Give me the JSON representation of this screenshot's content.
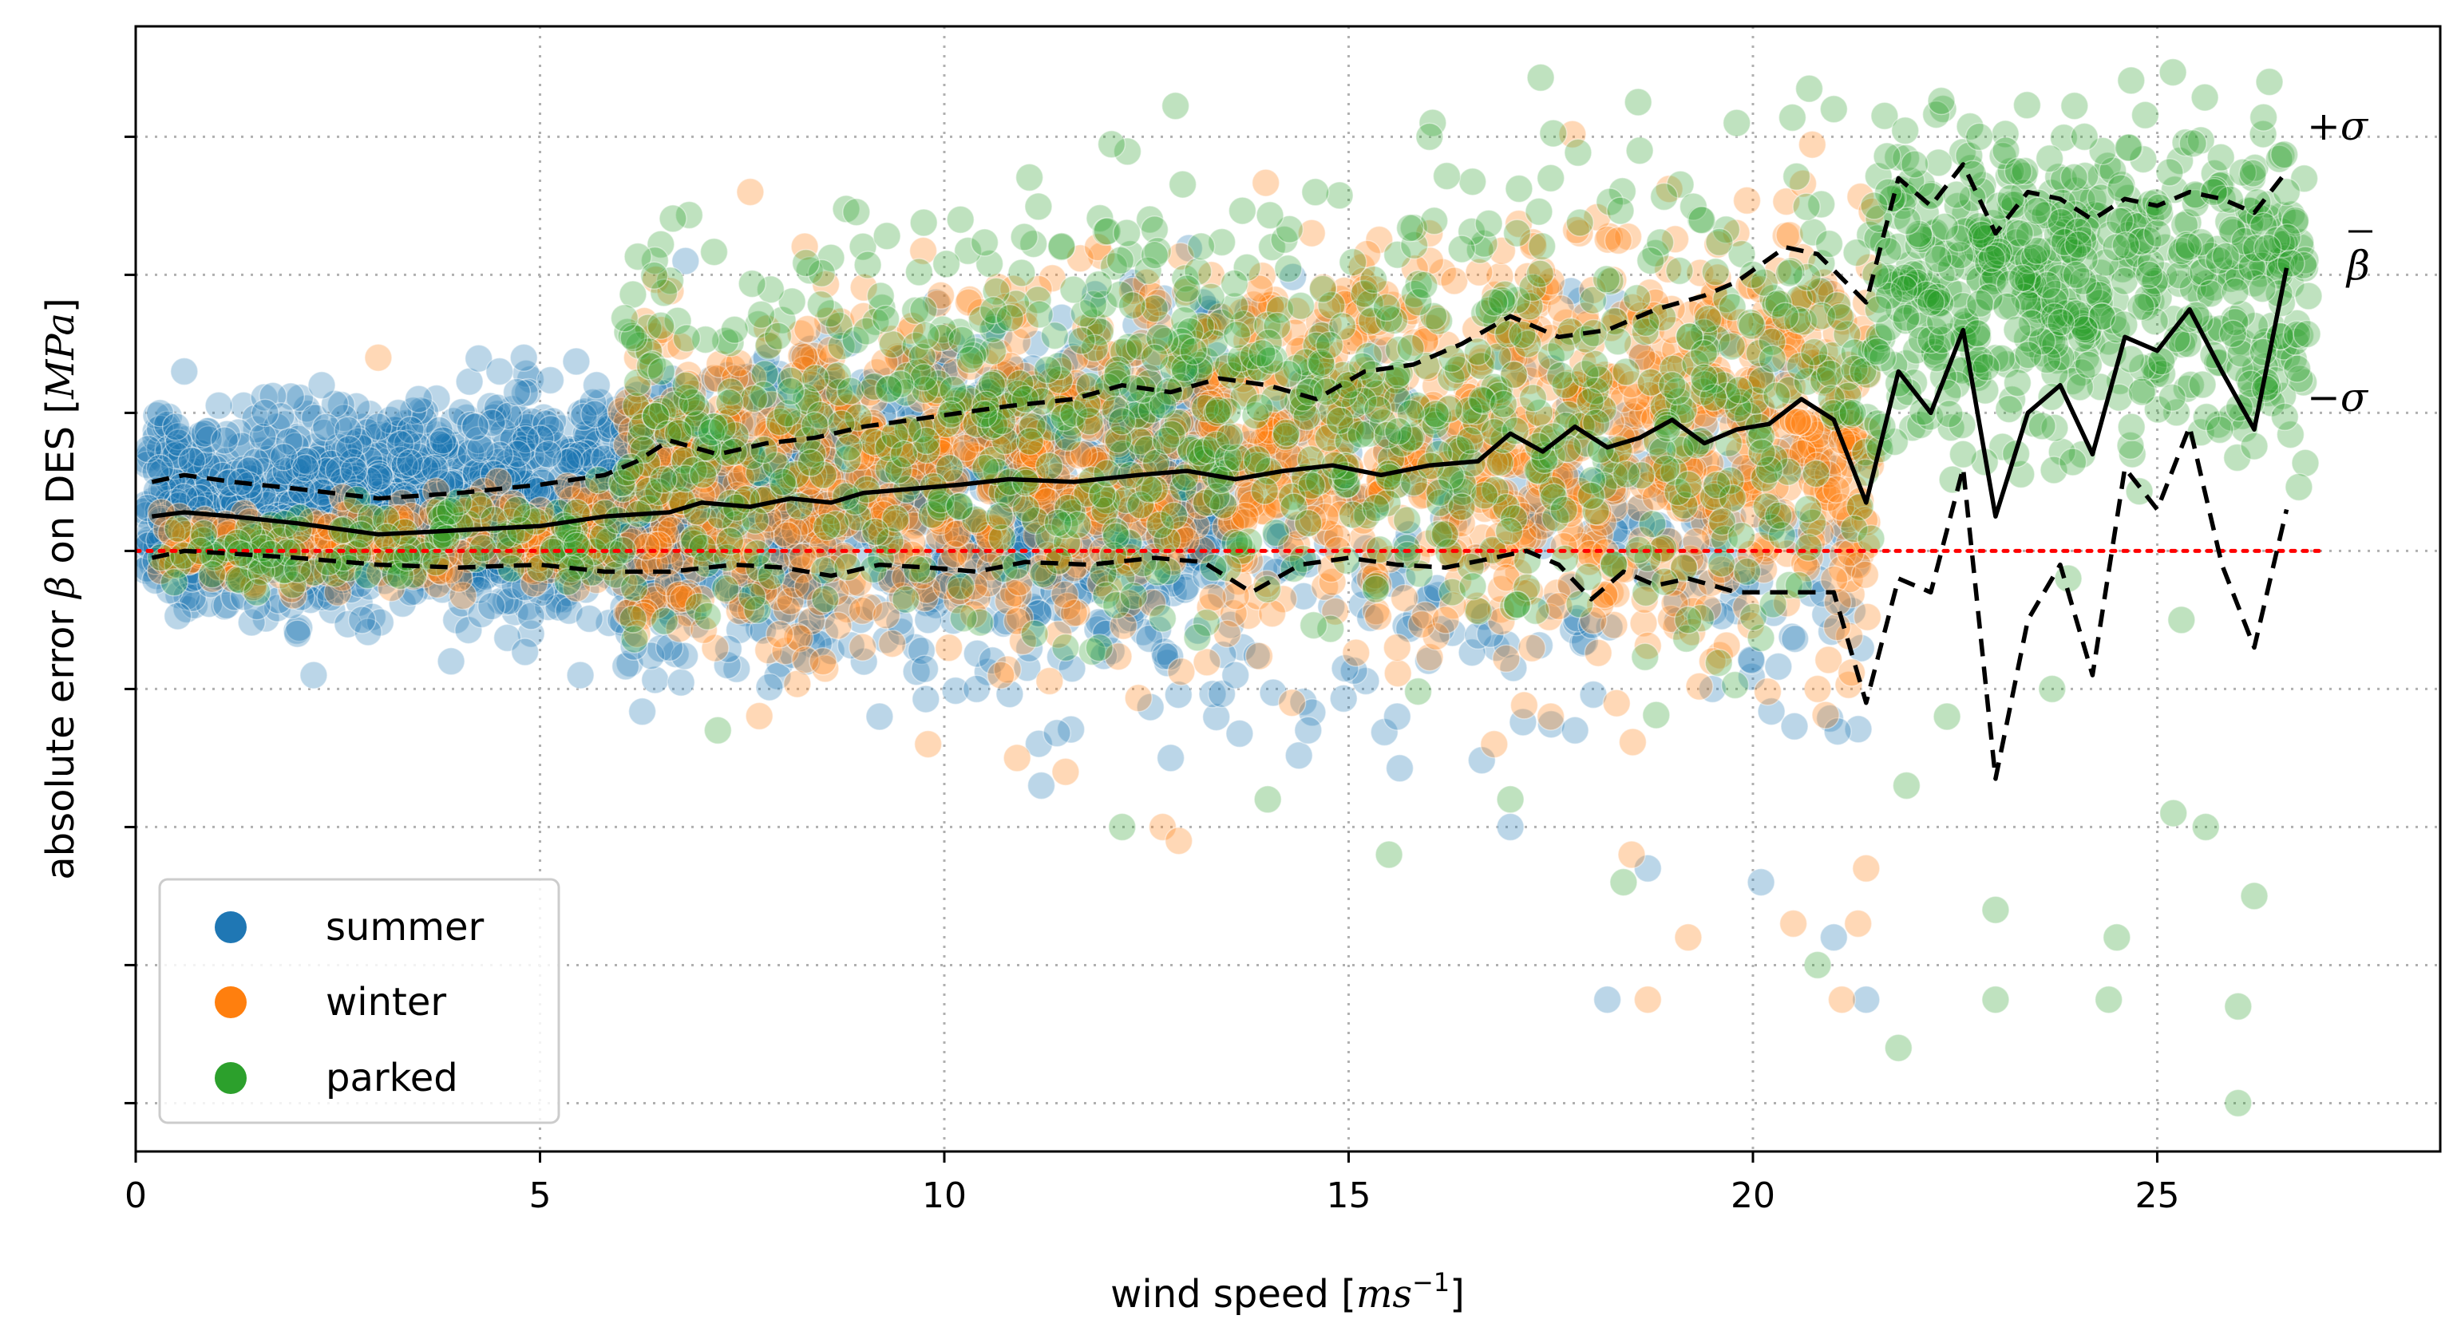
{
  "chart_data": {
    "type": "scatter",
    "xlabel": "wind speed [ms⁻¹]",
    "xlabel_base": "wind speed [",
    "xlabel_unit": "ms",
    "xlabel_exp": "−1",
    "xlabel_close": "]",
    "ylabel": "absolute error β on DES [MPa]",
    "ylabel_base": "absolute error ",
    "ylabel_beta": "β",
    "ylabel_mid": " on DES [",
    "ylabel_unit": "MPa",
    "ylabel_close": "]",
    "xlim": [
      0,
      28.5
    ],
    "ylim": [
      -4.35,
      3.8
    ],
    "xticks": [
      0,
      5,
      10,
      15,
      20,
      25
    ],
    "xtick_labels": [
      "0",
      "5",
      "10",
      "15",
      "20",
      "25"
    ],
    "yticks": [
      -4,
      -3,
      -2,
      -1,
      0,
      1,
      2,
      3
    ],
    "grid": true,
    "legend_position": "bottom-left",
    "colors": {
      "summer": "#1f77b4",
      "winter": "#ff7f0e",
      "parked": "#2ca02c",
      "zero_line": "#ff0000",
      "stat_lines": "#000000"
    },
    "legend": [
      {
        "name": "summer",
        "color": "#1f77b4"
      },
      {
        "name": "winter",
        "color": "#ff7f0e"
      },
      {
        "name": "parked",
        "color": "#2ca02c"
      }
    ],
    "reference_line": {
      "y": 0,
      "x_range": [
        0,
        27
      ],
      "color": "#ff0000",
      "style": "dotted"
    },
    "annotations": {
      "plus_sigma": "+σ",
      "mean": "β",
      "minus_sigma": "−σ"
    },
    "series": [
      {
        "name": "summer",
        "color": "#1f77b4",
        "points": [
          [
            0.3,
            0.6
          ],
          [
            0.5,
            0.9
          ],
          [
            0.6,
            1.3
          ],
          [
            0.7,
            -0.2
          ],
          [
            0.8,
            0.3
          ],
          [
            1.0,
            0.1
          ],
          [
            1.1,
            0.8
          ],
          [
            1.3,
            0.5
          ],
          [
            1.5,
            -0.4
          ],
          [
            1.6,
            1.0
          ],
          [
            1.8,
            0.2
          ],
          [
            2.0,
            -0.6
          ],
          [
            2.1,
            0.6
          ],
          [
            2.3,
            1.2
          ],
          [
            2.5,
            0.0
          ],
          [
            2.7,
            0.4
          ],
          [
            2.8,
            -0.5
          ],
          [
            3.0,
            0.9
          ],
          [
            3.2,
            0.3
          ],
          [
            3.4,
            -0.3
          ],
          [
            3.5,
            1.1
          ],
          [
            3.7,
            0.6
          ],
          [
            3.9,
            -0.8
          ],
          [
            4.0,
            0.2
          ],
          [
            4.2,
            0.9
          ],
          [
            4.4,
            -0.4
          ],
          [
            4.6,
            0.5
          ],
          [
            4.8,
            1.4
          ],
          [
            5.0,
            -0.2
          ],
          [
            5.1,
            0.7
          ],
          [
            5.3,
            0.1
          ],
          [
            5.5,
            -0.9
          ],
          [
            5.7,
            1.2
          ],
          [
            5.8,
            0.4
          ],
          [
            6.0,
            -0.5
          ],
          [
            6.2,
            0.8
          ],
          [
            6.4,
            0.2
          ],
          [
            6.6,
            -0.7
          ],
          [
            6.8,
            2.1
          ],
          [
            7.0,
            1.0
          ],
          [
            7.2,
            0.5
          ],
          [
            7.5,
            -0.3
          ],
          [
            7.8,
            1.4
          ],
          [
            8.0,
            0.6
          ],
          [
            8.3,
            -0.8
          ],
          [
            8.6,
            1.0
          ],
          [
            8.9,
            0.3
          ],
          [
            9.2,
            -1.2
          ],
          [
            9.5,
            0.8
          ],
          [
            9.8,
            -0.5
          ],
          [
            10.1,
            1.5
          ],
          [
            10.4,
            -1.0
          ],
          [
            10.8,
            0.6
          ],
          [
            11.2,
            -1.7
          ],
          [
            11.6,
            1.2
          ],
          [
            12.0,
            -0.6
          ],
          [
            12.4,
            0.9
          ],
          [
            12.8,
            -1.5
          ],
          [
            13.2,
            1.8
          ],
          [
            13.6,
            -0.9
          ],
          [
            14.0,
            0.7
          ],
          [
            14.5,
            -1.3
          ],
          [
            15.0,
            0.4
          ],
          [
            15.6,
            -1.2
          ],
          [
            16.2,
            0.8
          ],
          [
            17.0,
            -2.0
          ],
          [
            17.8,
            -1.3
          ],
          [
            18.2,
            -3.25
          ],
          [
            18.7,
            -2.3
          ],
          [
            19.5,
            -1.0
          ],
          [
            20.1,
            -2.4
          ],
          [
            21.0,
            -2.8
          ],
          [
            21.4,
            -3.25
          ],
          [
            6.5,
            -0.1
          ],
          [
            2.2,
            -0.9
          ],
          [
            4.5,
            1.3
          ],
          [
            3.8,
            0.8
          ],
          [
            8.1,
            -0.2
          ],
          [
            9.9,
            1.8
          ],
          [
            11.9,
            1.6
          ]
        ]
      },
      {
        "name": "winter",
        "color": "#ff7f0e",
        "points": [
          [
            0.5,
            0.0
          ],
          [
            1.2,
            -0.2
          ],
          [
            2.5,
            -0.3
          ],
          [
            3.0,
            1.4
          ],
          [
            4.0,
            -0.2
          ],
          [
            5.5,
            0.0
          ],
          [
            6.2,
            -0.6
          ],
          [
            6.5,
            1.6
          ],
          [
            7.0,
            0.4
          ],
          [
            7.5,
            -0.4
          ],
          [
            8.0,
            0.9
          ],
          [
            8.5,
            -0.8
          ],
          [
            9.0,
            1.7
          ],
          [
            9.4,
            0.2
          ],
          [
            9.8,
            -1.4
          ],
          [
            10.3,
            1.8
          ],
          [
            10.7,
            -0.9
          ],
          [
            11.1,
            0.7
          ],
          [
            11.5,
            -1.6
          ],
          [
            11.9,
            2.2
          ],
          [
            12.3,
            0.3
          ],
          [
            12.7,
            -2.0
          ],
          [
            13.1,
            1.5
          ],
          [
            13.5,
            -0.6
          ],
          [
            13.9,
            1.9
          ],
          [
            14.3,
            -1.1
          ],
          [
            14.8,
            0.5
          ],
          [
            15.2,
            1.9
          ],
          [
            15.6,
            -0.7
          ],
          [
            16.0,
            2.3
          ],
          [
            16.4,
            0.2
          ],
          [
            16.8,
            -1.4
          ],
          [
            17.2,
            1.7
          ],
          [
            17.6,
            -0.4
          ],
          [
            18.0,
            0.9
          ],
          [
            18.5,
            -2.2
          ],
          [
            19.0,
            1.6
          ],
          [
            19.5,
            -0.8
          ],
          [
            19.9,
            0.6
          ],
          [
            20.4,
            1.4
          ],
          [
            20.8,
            -1.0
          ],
          [
            21.1,
            0.8
          ],
          [
            21.3,
            -2.7
          ],
          [
            21.1,
            -3.25
          ],
          [
            21.4,
            -2.3
          ],
          [
            7.6,
            2.6
          ],
          [
            11.8,
            1.6
          ],
          [
            14.9,
            1.0
          ],
          [
            17.5,
            -1.2
          ],
          [
            19.2,
            -2.8
          ],
          [
            20.5,
            -2.7
          ],
          [
            18.7,
            -3.25
          ],
          [
            10.9,
            -1.5
          ],
          [
            12.9,
            -2.1
          ],
          [
            16.2,
            -0.5
          ],
          [
            9.6,
            0.5
          ],
          [
            13.3,
            0.9
          ],
          [
            15.9,
            0.4
          ],
          [
            8.8,
            0.2
          ],
          [
            6.8,
            0.7
          ]
        ]
      },
      {
        "name": "parked",
        "color": "#2ca02c",
        "points": [
          [
            0.8,
            0.0
          ],
          [
            1.5,
            -0.3
          ],
          [
            6.5,
            1.3
          ],
          [
            7.2,
            -1.3
          ],
          [
            8.0,
            0.5
          ],
          [
            9.5,
            0.7
          ],
          [
            10.2,
            2.4
          ],
          [
            11.0,
            1.1
          ],
          [
            12.2,
            -2.0
          ],
          [
            13.0,
            1.9
          ],
          [
            14.0,
            -1.8
          ],
          [
            15.0,
            1.2
          ],
          [
            15.5,
            -2.2
          ],
          [
            16.0,
            3.0
          ],
          [
            16.8,
            1.8
          ],
          [
            17.5,
            2.7
          ],
          [
            18.0,
            0.4
          ],
          [
            18.6,
            2.9
          ],
          [
            19.2,
            -0.5
          ],
          [
            19.8,
            3.1
          ],
          [
            20.4,
            1.7
          ],
          [
            21.0,
            3.2
          ],
          [
            21.5,
            2.5
          ],
          [
            21.9,
            -1.7
          ],
          [
            22.2,
            1.8
          ],
          [
            22.6,
            0.7
          ],
          [
            23.0,
            -2.6
          ],
          [
            23.3,
            2.3
          ],
          [
            23.7,
            -1.0
          ],
          [
            24.1,
            3.0
          ],
          [
            24.5,
            -2.8
          ],
          [
            24.9,
            2.0
          ],
          [
            25.3,
            -0.5
          ],
          [
            25.7,
            2.6
          ],
          [
            26.0,
            -3.3
          ],
          [
            26.3,
            1.9
          ],
          [
            26.6,
            2.6
          ],
          [
            22.0,
            2.8
          ],
          [
            22.8,
            3.0
          ],
          [
            24.0,
            2.0
          ],
          [
            25.0,
            2.3
          ],
          [
            25.6,
            -2.0
          ],
          [
            26.2,
            -2.5
          ],
          [
            21.8,
            -3.6
          ],
          [
            23.0,
            -3.25
          ],
          [
            24.4,
            -3.25
          ],
          [
            26.0,
            -4.0
          ],
          [
            18.4,
            -2.4
          ],
          [
            17.0,
            -1.8
          ],
          [
            20.8,
            -3.0
          ],
          [
            22.4,
            -1.2
          ],
          [
            25.2,
            -1.9
          ],
          [
            23.9,
            -0.2
          ],
          [
            21.6,
            0.9
          ],
          [
            20.0,
            2.0
          ],
          [
            19.0,
            1.2
          ],
          [
            16.5,
            0.8
          ],
          [
            14.5,
            0.2
          ],
          [
            12.6,
            1.4
          ],
          [
            11.5,
            -0.7
          ]
        ]
      }
    ],
    "mean_line": {
      "name": "mean",
      "x": [
        0.2,
        0.6,
        1.2,
        2.0,
        3.0,
        4.0,
        5.0,
        5.8,
        6.6,
        7.0,
        7.6,
        8.1,
        8.6,
        9.0,
        9.6,
        10.2,
        10.8,
        11.6,
        12.4,
        13.0,
        13.6,
        14.2,
        14.8,
        15.4,
        16.0,
        16.6,
        17.0,
        17.4,
        17.8,
        18.2,
        18.6,
        19.0,
        19.4,
        19.8,
        20.2,
        20.6,
        21.0,
        21.4,
        21.8,
        22.2,
        22.6,
        23.0,
        23.4,
        23.8,
        24.2,
        24.6,
        25.0,
        25.4,
        25.8,
        26.2,
        26.6
      ],
      "y": [
        0.25,
        0.28,
        0.25,
        0.2,
        0.12,
        0.15,
        0.18,
        0.25,
        0.28,
        0.35,
        0.32,
        0.38,
        0.35,
        0.42,
        0.45,
        0.48,
        0.52,
        0.5,
        0.55,
        0.58,
        0.52,
        0.58,
        0.62,
        0.55,
        0.62,
        0.65,
        0.85,
        0.72,
        0.9,
        0.75,
        0.82,
        0.95,
        0.78,
        0.88,
        0.92,
        1.1,
        0.95,
        0.35,
        1.3,
        1.0,
        1.6,
        0.25,
        1.0,
        1.2,
        0.7,
        1.55,
        1.45,
        1.75,
        1.3,
        0.88,
        2.05
      ]
    },
    "upper_sigma_line": {
      "name": "+sigma",
      "x": [
        0.2,
        0.6,
        1.2,
        2.0,
        3.0,
        4.0,
        5.0,
        5.8,
        6.2,
        6.6,
        7.2,
        7.8,
        8.4,
        9.0,
        9.6,
        10.2,
        10.8,
        11.6,
        12.2,
        12.8,
        13.4,
        14.0,
        14.6,
        15.2,
        15.8,
        16.4,
        17.0,
        17.6,
        18.2,
        18.8,
        19.4,
        19.8,
        20.4,
        20.8,
        21.4,
        21.8,
        22.2,
        22.6,
        23.0,
        23.4,
        23.8,
        24.2,
        24.6,
        25.0,
        25.4,
        25.8,
        26.2,
        26.6
      ],
      "y": [
        0.5,
        0.55,
        0.5,
        0.45,
        0.38,
        0.42,
        0.48,
        0.55,
        0.65,
        0.8,
        0.7,
        0.78,
        0.82,
        0.9,
        0.95,
        1.0,
        1.05,
        1.1,
        1.2,
        1.15,
        1.25,
        1.2,
        1.1,
        1.3,
        1.35,
        1.5,
        1.7,
        1.55,
        1.6,
        1.75,
        1.85,
        1.95,
        2.2,
        2.15,
        1.8,
        2.7,
        2.5,
        2.8,
        2.3,
        2.6,
        2.55,
        2.4,
        2.55,
        2.5,
        2.6,
        2.55,
        2.45,
        2.75
      ]
    },
    "lower_sigma_line": {
      "name": "-sigma",
      "x": [
        0.2,
        0.6,
        1.2,
        2.0,
        3.0,
        4.0,
        5.0,
        5.8,
        6.6,
        7.4,
        8.0,
        8.6,
        9.2,
        9.8,
        10.4,
        11.0,
        11.8,
        12.6,
        13.2,
        13.8,
        14.4,
        15.0,
        15.6,
        16.2,
        16.8,
        17.2,
        17.6,
        18.0,
        18.4,
        18.8,
        19.2,
        19.8,
        20.4,
        21.0,
        21.4,
        21.8,
        22.2,
        22.6,
        23.0,
        23.4,
        23.8,
        24.2,
        24.6,
        25.0,
        25.4,
        25.8,
        26.2,
        26.6
      ],
      "y": [
        -0.05,
        0.0,
        -0.02,
        -0.05,
        -0.1,
        -0.12,
        -0.1,
        -0.15,
        -0.15,
        -0.1,
        -0.12,
        -0.18,
        -0.1,
        -0.12,
        -0.15,
        -0.08,
        -0.1,
        -0.05,
        -0.08,
        -0.3,
        -0.1,
        -0.05,
        -0.1,
        -0.12,
        -0.05,
        0.0,
        -0.1,
        -0.35,
        -0.15,
        -0.25,
        -0.2,
        -0.3,
        -0.3,
        -0.3,
        -1.1,
        -0.2,
        -0.3,
        0.6,
        -1.65,
        -0.5,
        -0.1,
        -0.9,
        0.6,
        0.3,
        0.9,
        -0.1,
        -0.7,
        0.3
      ]
    }
  }
}
